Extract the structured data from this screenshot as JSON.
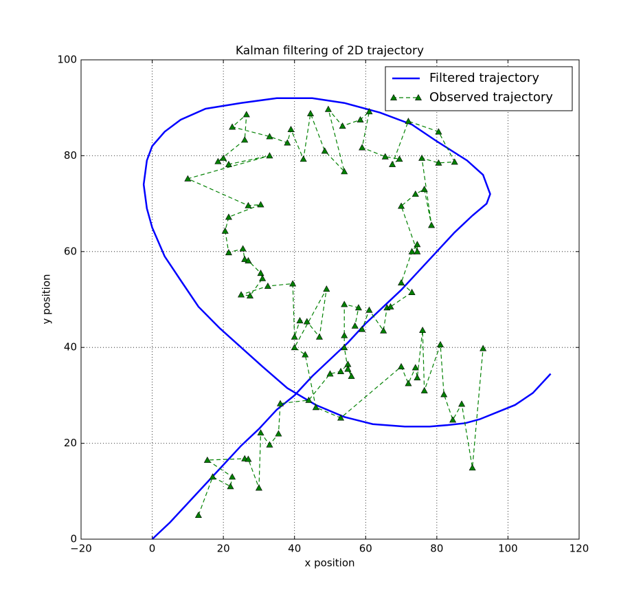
{
  "chart_data": {
    "type": "line",
    "title": "Kalman filtering of 2D trajectory",
    "x_label": "x position",
    "y_label": "y position",
    "xlim": [
      -20,
      120
    ],
    "ylim": [
      0,
      100
    ],
    "xticks": [
      {
        "value": -20,
        "label": "−20"
      },
      0,
      20,
      40,
      60,
      80,
      100,
      120
    ],
    "yticks": [
      0,
      20,
      40,
      60,
      80,
      100
    ],
    "grid": true,
    "legend": "upper right",
    "series": [
      {
        "name": "Filtered trajectory",
        "color": "#0000ff",
        "line": "solid",
        "x": [
          0,
          5,
          10,
          15,
          20,
          25,
          30,
          35,
          40,
          45,
          50,
          55,
          60,
          65,
          70,
          75,
          80,
          85,
          90,
          94,
          95,
          93,
          88.5,
          80,
          73,
          64,
          54,
          45,
          35,
          25,
          15,
          8,
          3.5,
          0,
          -1.5,
          -2.4,
          -1.5,
          0,
          3.5,
          8,
          13,
          19,
          25,
          31,
          38,
          46,
          54,
          62,
          71,
          78,
          83,
          88,
          92,
          97,
          102,
          107,
          112
        ],
        "values": [
          0,
          3.5,
          7.5,
          11.5,
          15.5,
          19.5,
          23,
          27,
          30,
          34,
          37.5,
          41,
          45,
          48.5,
          52,
          56,
          60,
          64,
          67.5,
          70,
          72,
          76,
          79,
          83,
          86.5,
          89,
          91,
          92,
          92,
          91,
          89.8,
          87.5,
          85,
          82,
          79,
          74,
          69,
          65,
          59,
          54,
          48.5,
          44,
          40,
          36,
          31.5,
          28,
          25.5,
          24,
          23.5,
          23.5,
          23.8,
          24.2,
          25,
          26.5,
          28,
          30.5,
          34.5
        ]
      },
      {
        "name": "Observed trajectory",
        "color": "#008000",
        "line": "dashed",
        "marker": "triangle",
        "x": [
          13,
          17,
          22,
          22.5,
          15.5,
          26,
          27,
          30,
          30.5,
          33,
          35.5,
          36,
          44,
          50,
          53,
          55,
          56,
          55,
          54,
          54,
          54,
          58,
          57,
          59,
          61,
          65,
          66,
          67,
          73,
          70,
          73,
          74.5,
          74.5,
          70,
          74,
          76.5,
          78.5,
          75.8,
          80.5,
          85,
          80.5,
          72,
          67.5,
          69.5,
          65.5,
          59,
          61,
          58.5,
          53.5,
          49.5,
          54,
          48.5,
          44.5,
          42.5,
          39,
          38,
          33,
          22.5,
          26.5,
          26,
          18.5,
          20,
          21.5,
          33,
          10,
          27,
          30.5,
          21.5,
          20.5,
          21.5,
          25.5,
          26,
          27,
          30.5,
          31,
          27.5,
          25,
          32.5,
          39.5,
          40,
          41.5,
          43.5,
          47,
          49,
          40,
          43,
          46,
          53,
          70,
          72,
          74,
          74.5,
          76,
          76.5,
          81,
          82,
          84.5,
          87,
          90,
          93
        ],
        "values": [
          5,
          13,
          11,
          13,
          16.5,
          16.8,
          16.7,
          10.7,
          22.2,
          19.7,
          22,
          28.3,
          29,
          34.5,
          35,
          36.5,
          34,
          35.5,
          40,
          42.5,
          49,
          48.3,
          44.5,
          43.8,
          47.8,
          43.5,
          48.3,
          48.5,
          51.5,
          53.5,
          60,
          61.5,
          60,
          69.5,
          72,
          73,
          65.5,
          79.5,
          78.5,
          78.7,
          85,
          87.2,
          78.2,
          79.3,
          79.8,
          81.7,
          89.2,
          87.5,
          86.2,
          89.7,
          76.7,
          81,
          88.8,
          79.3,
          85.5,
          82.7,
          84,
          86,
          88.6,
          83.3,
          78.8,
          79.5,
          78.2,
          80,
          75.2,
          69.6,
          69.8,
          67.2,
          64.3,
          59.8,
          60.6,
          58.4,
          58.1,
          55.5,
          54.4,
          50.8,
          51,
          52.8,
          53.3,
          42.2,
          45.6,
          45.4,
          42.2,
          52.2,
          40,
          38.5,
          27.5,
          25.3,
          36,
          32.5,
          35.8,
          33.7,
          43.6,
          31,
          40.6,
          30.2,
          24.9,
          28.2,
          14.9,
          39.8
        ]
      }
    ]
  }
}
